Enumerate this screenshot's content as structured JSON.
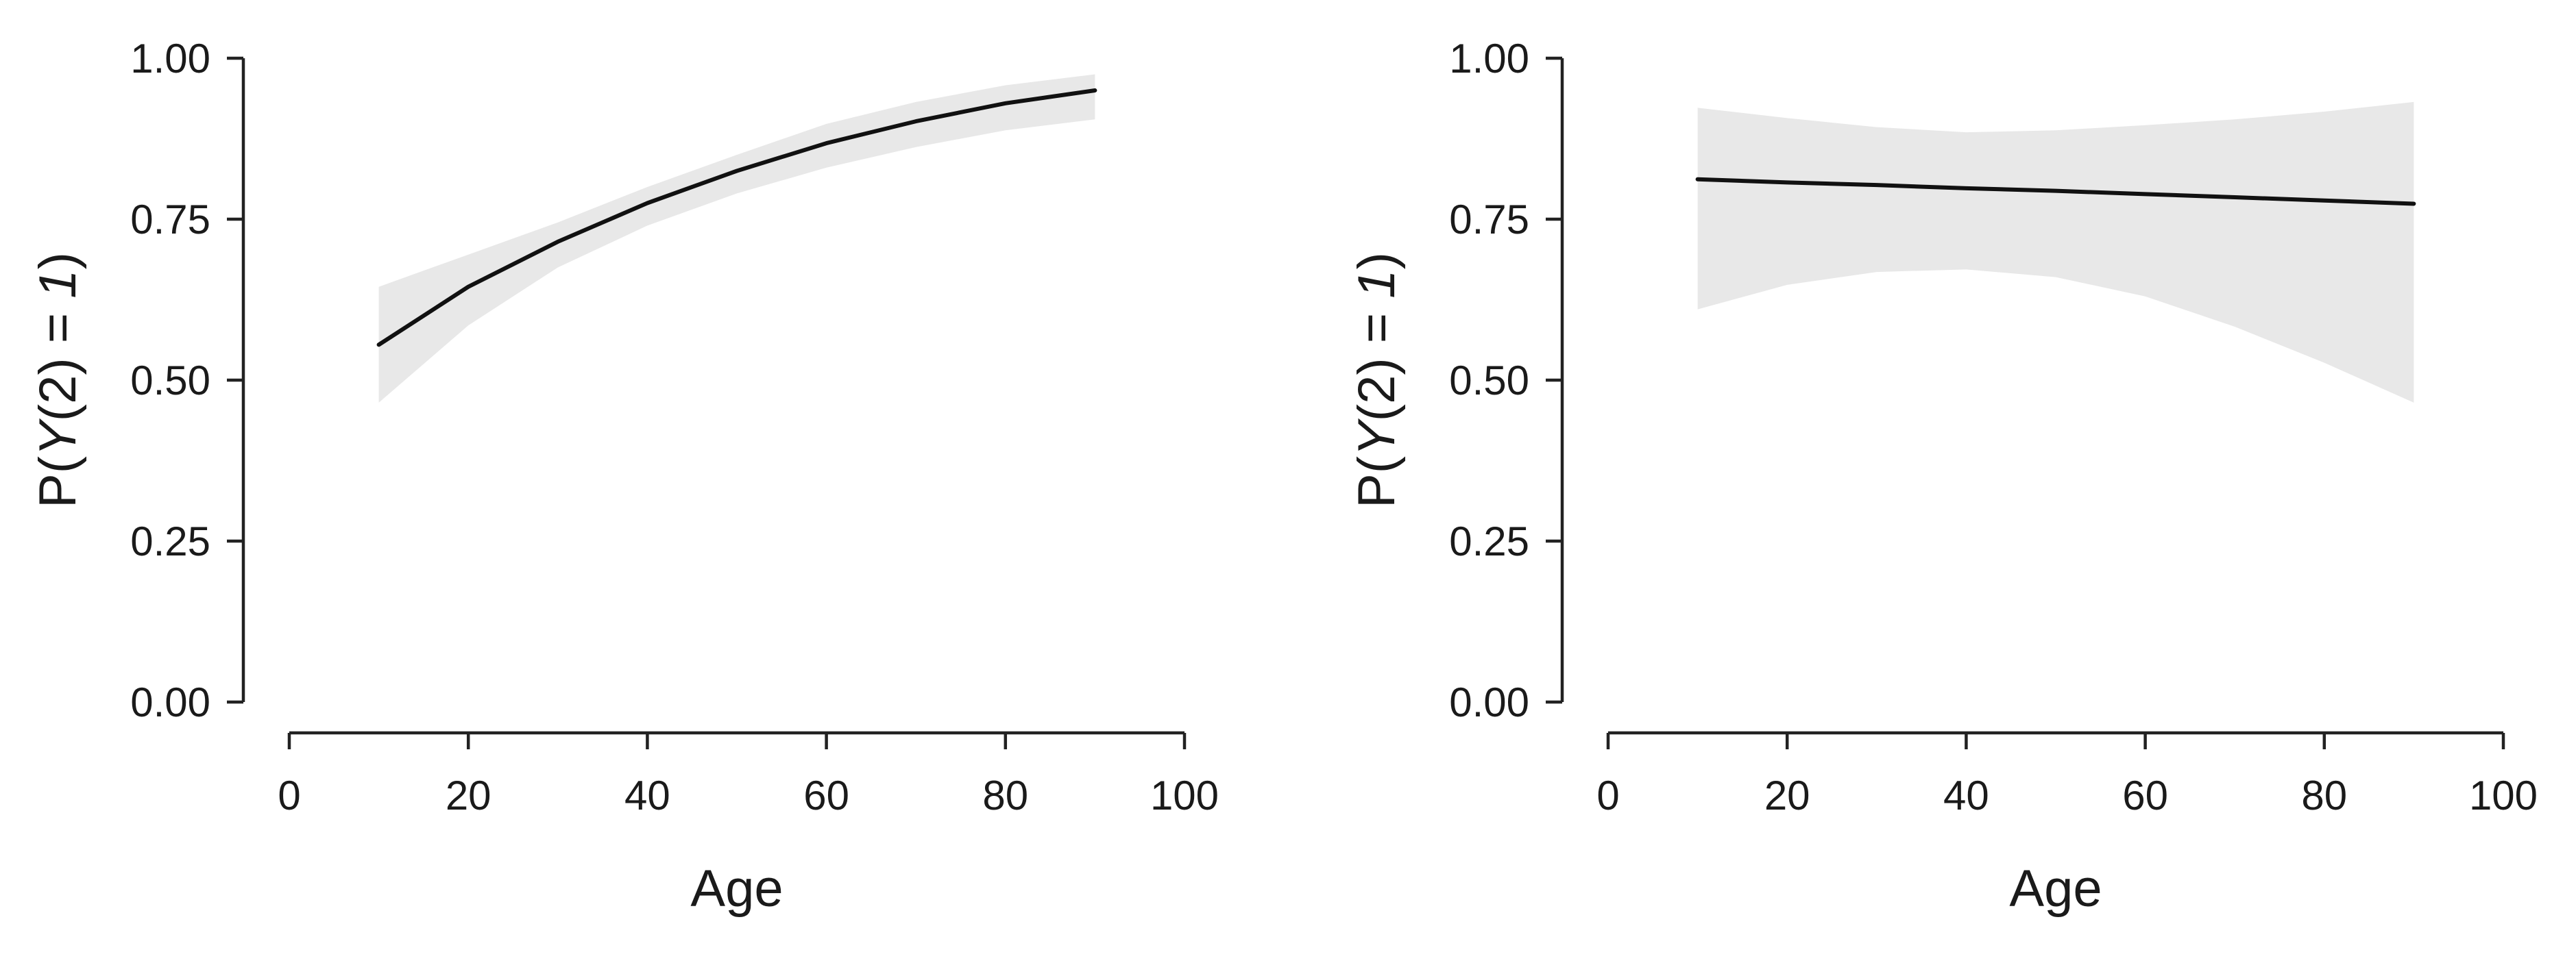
{
  "colors": {
    "band": "#e8e8e8",
    "line": "#111111",
    "axis": "#222222"
  },
  "chart_data": [
    {
      "type": "line",
      "xlabel": "Age",
      "ylabel": {
        "prefix": "P(",
        "italic": "Y",
        "middle": "(2) = ",
        "italic2": "1",
        "suffix": ")"
      },
      "xlim": [
        0,
        100
      ],
      "ylim": [
        0,
        1
      ],
      "xticks": [
        "0",
        "20",
        "40",
        "60",
        "80",
        "100"
      ],
      "yticks": [
        "0.00",
        "0.25",
        "0.50",
        "0.75",
        "1.00"
      ],
      "grid": false,
      "series": [
        {
          "x": [
            10,
            20,
            30,
            40,
            50,
            60,
            70,
            80,
            90
          ],
          "y": [
            0.555,
            0.645,
            0.715,
            0.775,
            0.825,
            0.868,
            0.902,
            0.93,
            0.95
          ],
          "lower": [
            0.465,
            0.585,
            0.675,
            0.74,
            0.79,
            0.83,
            0.862,
            0.888,
            0.905
          ],
          "upper": [
            0.645,
            0.695,
            0.745,
            0.8,
            0.85,
            0.898,
            0.932,
            0.958,
            0.975
          ]
        }
      ]
    },
    {
      "type": "line",
      "xlabel": "Age",
      "ylabel": {
        "prefix": "P(",
        "italic": "Y",
        "middle": "(2) = ",
        "italic2": "1",
        "suffix": ")"
      },
      "xlim": [
        0,
        100
      ],
      "ylim": [
        0,
        1
      ],
      "xticks": [
        "0",
        "20",
        "40",
        "60",
        "80",
        "100"
      ],
      "yticks": [
        "0.00",
        "0.25",
        "0.50",
        "0.75",
        "1.00"
      ],
      "grid": false,
      "series": [
        {
          "x": [
            10,
            20,
            30,
            40,
            50,
            60,
            70,
            80,
            90
          ],
          "y": [
            0.812,
            0.807,
            0.803,
            0.798,
            0.794,
            0.789,
            0.784,
            0.779,
            0.774
          ],
          "lower": [
            0.61,
            0.648,
            0.668,
            0.672,
            0.66,
            0.63,
            0.583,
            0.527,
            0.465
          ],
          "upper": [
            0.923,
            0.907,
            0.893,
            0.885,
            0.888,
            0.896,
            0.905,
            0.917,
            0.932
          ]
        }
      ]
    }
  ]
}
